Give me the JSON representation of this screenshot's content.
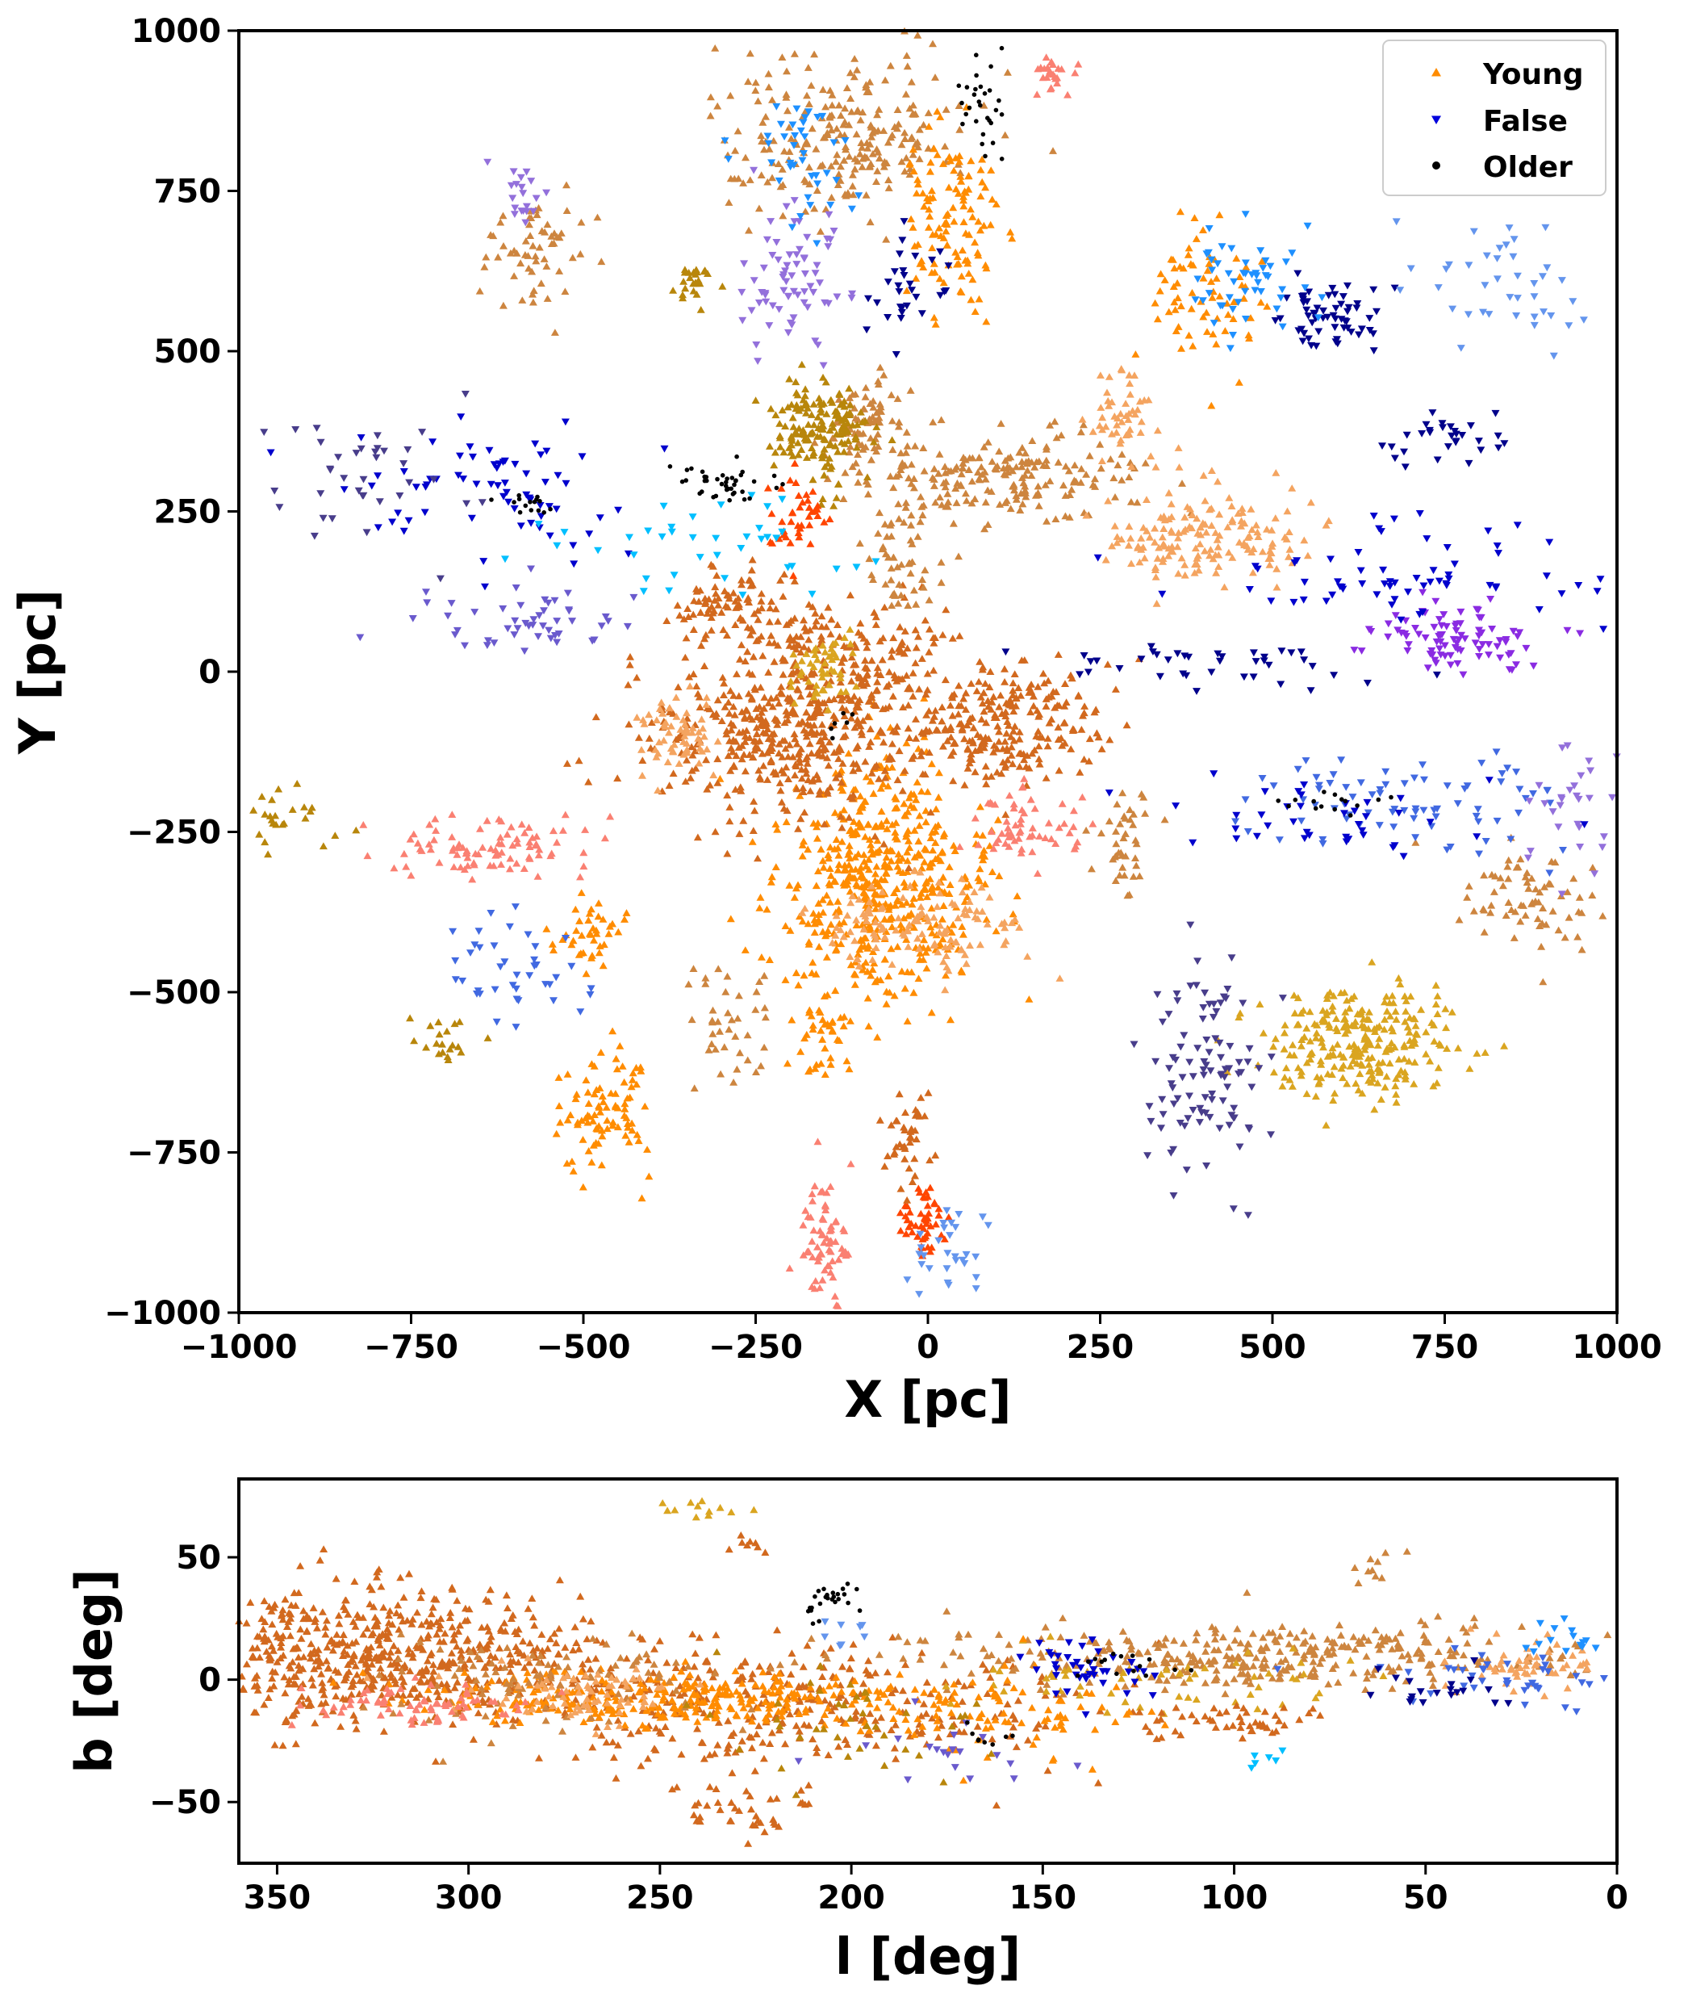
{
  "chart_data": [
    {
      "type": "scatter",
      "panel": "top",
      "xlabel": "X [pc]",
      "ylabel": "Y [pc]",
      "xlim": [
        -1000,
        1000
      ],
      "ylim": [
        -1000,
        1000
      ],
      "xticks": [
        -1000,
        -750,
        -500,
        -250,
        0,
        250,
        500,
        750,
        1000
      ],
      "yticks": [
        -1000,
        -750,
        -500,
        -250,
        0,
        250,
        500,
        750,
        1000
      ],
      "xtick_labels": [
        "−1000",
        "−750",
        "−500",
        "−250",
        "0",
        "250",
        "500",
        "750",
        "1000"
      ],
      "ytick_labels": [
        "−1000",
        "−750",
        "−500",
        "−250",
        "0",
        "250",
        "500",
        "750",
        "1000"
      ],
      "legend": {
        "placement": "top-right",
        "entries": [
          {
            "label": "Young",
            "marker": "triangle-up",
            "color": "#ff8c00"
          },
          {
            "label": "False",
            "marker": "triangle-down",
            "color": "#0000dd"
          },
          {
            "label": "Older",
            "marker": "circle",
            "color": "#000000"
          }
        ]
      },
      "series": [
        {
          "name": "Young",
          "marker": "triangle-up",
          "clusters": [
            {
              "color": "#ff8c00",
              "cx": -70,
              "cy": -330,
              "sx": 75,
              "sy": 95,
              "n": 520
            },
            {
              "color": "#d2691e",
              "cx": -220,
              "cy": -110,
              "sx": 95,
              "sy": 65,
              "n": 360
            },
            {
              "color": "#d2691e",
              "cx": 90,
              "cy": -80,
              "sx": 80,
              "sy": 55,
              "n": 260
            },
            {
              "color": "#d2691e",
              "cx": -120,
              "cy": 10,
              "sx": 80,
              "sy": 55,
              "n": 220
            },
            {
              "color": "#d2691e",
              "cx": -280,
              "cy": 100,
              "sx": 45,
              "sy": 30,
              "n": 90
            },
            {
              "color": "#cd853f",
              "cx": -130,
              "cy": 840,
              "sx": 90,
              "sy": 65,
              "n": 240
            },
            {
              "color": "#cd853f",
              "cx": 110,
              "cy": 300,
              "sx": 100,
              "sy": 35,
              "n": 200
            },
            {
              "color": "#cd853f",
              "cx": -90,
              "cy": 380,
              "sx": 30,
              "sy": 40,
              "n": 80
            },
            {
              "color": "#b8860b",
              "cx": -160,
              "cy": 380,
              "sx": 35,
              "sy": 40,
              "n": 160
            },
            {
              "color": "#f4a460",
              "cx": 400,
              "cy": 210,
              "sx": 75,
              "sy": 35,
              "n": 160
            },
            {
              "color": "#f4a460",
              "cx": -10,
              "cy": -400,
              "sx": 75,
              "sy": 35,
              "n": 120
            },
            {
              "color": "#f4a460",
              "cx": -360,
              "cy": -100,
              "sx": 30,
              "sy": 25,
              "n": 60
            },
            {
              "color": "#f4a460",
              "cx": 280,
              "cy": 400,
              "sx": 30,
              "sy": 40,
              "n": 50
            },
            {
              "color": "#daa520",
              "cx": 630,
              "cy": -580,
              "sx": 70,
              "sy": 45,
              "n": 260
            },
            {
              "color": "#daa520",
              "cx": -150,
              "cy": 0,
              "sx": 25,
              "sy": 25,
              "n": 50
            },
            {
              "color": "#ff8c00",
              "cx": 40,
              "cy": 700,
              "sx": 35,
              "sy": 70,
              "n": 120
            },
            {
              "color": "#ff8c00",
              "cx": 400,
              "cy": 580,
              "sx": 40,
              "sy": 60,
              "n": 70
            },
            {
              "color": "#ff8c00",
              "cx": -470,
              "cy": -680,
              "sx": 35,
              "sy": 50,
              "n": 90
            },
            {
              "color": "#ff8c00",
              "cx": -150,
              "cy": -580,
              "sx": 20,
              "sy": 40,
              "n": 40
            },
            {
              "color": "#ff8c00",
              "cx": -490,
              "cy": -410,
              "sx": 30,
              "sy": 25,
              "n": 40
            },
            {
              "color": "#fa8072",
              "cx": -640,
              "cy": -270,
              "sx": 70,
              "sy": 25,
              "n": 90
            },
            {
              "color": "#fa8072",
              "cx": 140,
              "cy": -240,
              "sx": 40,
              "sy": 30,
              "n": 60
            },
            {
              "color": "#fa8072",
              "cx": -150,
              "cy": -890,
              "sx": 20,
              "sy": 50,
              "n": 70
            },
            {
              "color": "#ff4500",
              "cx": -10,
              "cy": -850,
              "sx": 15,
              "sy": 30,
              "n": 50
            },
            {
              "color": "#ff4500",
              "cx": -190,
              "cy": 240,
              "sx": 20,
              "sy": 30,
              "n": 40
            },
            {
              "color": "#d2691e",
              "cx": -30,
              "cy": -730,
              "sx": 20,
              "sy": 35,
              "n": 40
            },
            {
              "color": "#cd853f",
              "cx": 870,
              "cy": -360,
              "sx": 50,
              "sy": 40,
              "n": 70
            },
            {
              "color": "#cd853f",
              "cx": -560,
              "cy": 650,
              "sx": 50,
              "sy": 45,
              "n": 60
            },
            {
              "color": "#cd853f",
              "cx": 290,
              "cy": -260,
              "sx": 25,
              "sy": 40,
              "n": 40
            },
            {
              "color": "#b8860b",
              "cx": -340,
              "cy": 600,
              "sx": 15,
              "sy": 20,
              "n": 25
            },
            {
              "color": "#b8860b",
              "cx": -920,
              "cy": -240,
              "sx": 40,
              "sy": 20,
              "n": 25
            },
            {
              "color": "#b8860b",
              "cx": -700,
              "cy": -580,
              "sx": 30,
              "sy": 20,
              "n": 20
            },
            {
              "color": "#cd853f",
              "cx": -40,
              "cy": 170,
              "sx": 30,
              "sy": 45,
              "n": 50
            },
            {
              "color": "#fa8072",
              "cx": 180,
              "cy": 940,
              "sx": 15,
              "sy": 20,
              "n": 25
            },
            {
              "color": "#cd853f",
              "cx": -300,
              "cy": -550,
              "sx": 40,
              "sy": 40,
              "n": 40
            }
          ]
        },
        {
          "name": "False",
          "marker": "triangle-down",
          "clusters": [
            {
              "color": "#8a2be2",
              "cx": 760,
              "cy": 50,
              "sx": 60,
              "sy": 25,
              "n": 90
            },
            {
              "color": "#9370db",
              "cx": -200,
              "cy": 600,
              "sx": 35,
              "sy": 70,
              "n": 70
            },
            {
              "color": "#483d8b",
              "cx": 400,
              "cy": -630,
              "sx": 45,
              "sy": 90,
              "n": 100
            },
            {
              "color": "#00008b",
              "cx": 590,
              "cy": 550,
              "sx": 40,
              "sy": 30,
              "n": 60
            },
            {
              "color": "#1e90ff",
              "cx": 460,
              "cy": 620,
              "sx": 40,
              "sy": 40,
              "n": 50
            },
            {
              "color": "#4169e1",
              "cx": 700,
              "cy": -200,
              "sx": 130,
              "sy": 40,
              "n": 80
            },
            {
              "color": "#0000cd",
              "cx": 720,
              "cy": 150,
              "sx": 150,
              "sy": 40,
              "n": 70
            },
            {
              "color": "#6495ed",
              "cx": 820,
              "cy": 600,
              "sx": 70,
              "sy": 50,
              "n": 40
            },
            {
              "color": "#00008b",
              "cx": 440,
              "cy": 10,
              "sx": 130,
              "sy": 15,
              "n": 40
            },
            {
              "color": "#0000cd",
              "cx": -630,
              "cy": 280,
              "sx": 100,
              "sy": 60,
              "n": 70
            },
            {
              "color": "#6a5acd",
              "cx": -570,
              "cy": 80,
              "sx": 90,
              "sy": 30,
              "n": 50
            },
            {
              "color": "#00bfff",
              "cx": -300,
              "cy": 200,
              "sx": 120,
              "sy": 50,
              "n": 40
            },
            {
              "color": "#4169e1",
              "cx": -600,
              "cy": -460,
              "sx": 50,
              "sy": 40,
              "n": 40
            },
            {
              "color": "#9370db",
              "cx": 930,
              "cy": -200,
              "sx": 30,
              "sy": 60,
              "n": 30
            },
            {
              "color": "#1e90ff",
              "cx": -180,
              "cy": 790,
              "sx": 40,
              "sy": 50,
              "n": 40
            },
            {
              "color": "#483d8b",
              "cx": -800,
              "cy": 320,
              "sx": 120,
              "sy": 60,
              "n": 40
            },
            {
              "color": "#00008b",
              "cx": -30,
              "cy": 600,
              "sx": 30,
              "sy": 50,
              "n": 30
            },
            {
              "color": "#6495ed",
              "cx": 30,
              "cy": -900,
              "sx": 40,
              "sy": 50,
              "n": 30
            },
            {
              "color": "#0000cd",
              "cx": 600,
              "cy": -230,
              "sx": 100,
              "sy": 30,
              "n": 40
            },
            {
              "color": "#9370db",
              "cx": -580,
              "cy": 740,
              "sx": 25,
              "sy": 25,
              "n": 20
            },
            {
              "color": "#00008b",
              "cx": 750,
              "cy": 360,
              "sx": 50,
              "sy": 20,
              "n": 30
            }
          ]
        },
        {
          "name": "Older",
          "marker": "circle",
          "clusters": [
            {
              "color": "#000000",
              "cx": 80,
              "cy": 890,
              "sx": 20,
              "sy": 40,
              "n": 30
            },
            {
              "color": "#000000",
              "cx": -290,
              "cy": 295,
              "sx": 35,
              "sy": 15,
              "n": 40
            },
            {
              "color": "#000000",
              "cx": -580,
              "cy": 260,
              "sx": 20,
              "sy": 10,
              "n": 15
            },
            {
              "color": "#000000",
              "cx": 580,
              "cy": -200,
              "sx": 35,
              "sy": 10,
              "n": 15
            },
            {
              "color": "#000000",
              "cx": -130,
              "cy": -80,
              "sx": 10,
              "sy": 15,
              "n": 6
            }
          ]
        }
      ]
    },
    {
      "type": "scatter",
      "panel": "bottom",
      "xlabel": "l [deg]",
      "ylabel": "b [deg]",
      "xlim": [
        360,
        0
      ],
      "ylim": [
        -75,
        82
      ],
      "xticks": [
        350,
        300,
        250,
        200,
        150,
        100,
        50,
        0
      ],
      "yticks": [
        -50,
        0,
        50
      ],
      "xtick_labels": [
        "350",
        "300",
        "250",
        "200",
        "150",
        "100",
        "50",
        "0"
      ],
      "ytick_labels": [
        "−50",
        "0",
        "50"
      ],
      "series": [
        {
          "name": "Young",
          "marker": "triangle-up",
          "clusters": [
            {
              "color": "#d2691e",
              "cx": 325,
              "cy": 10,
              "sx": 30,
              "sy": 13,
              "n": 650
            },
            {
              "color": "#d2691e",
              "cx": 220,
              "cy": -10,
              "sx": 40,
              "sy": 12,
              "n": 360
            },
            {
              "color": "#ff8c00",
              "cx": 245,
              "cy": -8,
              "sx": 30,
              "sy": 6,
              "n": 300
            },
            {
              "color": "#cd853f",
              "cx": 90,
              "cy": 10,
              "sx": 45,
              "sy": 7,
              "n": 360
            },
            {
              "color": "#cd853f",
              "cx": 280,
              "cy": 0,
              "sx": 25,
              "sy": 10,
              "n": 100
            },
            {
              "color": "#f4a460",
              "cx": 270,
              "cy": -5,
              "sx": 15,
              "sy": 6,
              "n": 70
            },
            {
              "color": "#f4a460",
              "cx": 25,
              "cy": 5,
              "sx": 10,
              "sy": 6,
              "n": 50
            },
            {
              "color": "#fa8072",
              "cx": 310,
              "cy": -10,
              "sx": 15,
              "sy": 5,
              "n": 70
            },
            {
              "color": "#d2691e",
              "cx": 230,
              "cy": -55,
              "sx": 10,
              "sy": 8,
              "n": 40
            },
            {
              "color": "#daa520",
              "cx": 120,
              "cy": 0,
              "sx": 30,
              "sy": 8,
              "n": 60
            },
            {
              "color": "#d2691e",
              "cx": 100,
              "cy": -17,
              "sx": 12,
              "sy": 3,
              "n": 50
            },
            {
              "color": "#cd853f",
              "cx": 60,
              "cy": 45,
              "sx": 6,
              "sy": 6,
              "n": 10
            },
            {
              "color": "#daa520",
              "cx": 240,
              "cy": 70,
              "sx": 6,
              "sy": 2,
              "n": 12
            },
            {
              "color": "#d2691e",
              "cx": 228,
              "cy": 56,
              "sx": 3,
              "sy": 2,
              "n": 8
            },
            {
              "color": "#ff8c00",
              "cx": 160,
              "cy": -15,
              "sx": 20,
              "sy": 10,
              "n": 80
            },
            {
              "color": "#b8860b",
              "cx": 200,
              "cy": -18,
              "sx": 20,
              "sy": 10,
              "n": 40
            }
          ]
        },
        {
          "name": "False",
          "marker": "triangle-down",
          "clusters": [
            {
              "color": "#0000cd",
              "cx": 140,
              "cy": 5,
              "sx": 10,
              "sy": 6,
              "n": 40
            },
            {
              "color": "#4169e1",
              "cx": 30,
              "cy": 0,
              "sx": 18,
              "sy": 6,
              "n": 40
            },
            {
              "color": "#1e90ff",
              "cx": 15,
              "cy": 15,
              "sx": 5,
              "sy": 4,
              "n": 15
            },
            {
              "color": "#6a5acd",
              "cx": 175,
              "cy": -30,
              "sx": 15,
              "sy": 8,
              "n": 20
            },
            {
              "color": "#00bfff",
              "cx": 92,
              "cy": -35,
              "sx": 3,
              "sy": 3,
              "n": 6
            },
            {
              "color": "#00008b",
              "cx": 50,
              "cy": -5,
              "sx": 10,
              "sy": 4,
              "n": 20
            },
            {
              "color": "#6495ed",
              "cx": 200,
              "cy": 20,
              "sx": 5,
              "sy": 5,
              "n": 8
            }
          ]
        },
        {
          "name": "Older",
          "marker": "circle",
          "clusters": [
            {
              "color": "#000000",
              "cx": 205,
              "cy": 32,
              "sx": 5,
              "sy": 4,
              "n": 25
            },
            {
              "color": "#000000",
              "cx": 130,
              "cy": 6,
              "sx": 7,
              "sy": 3,
              "n": 15
            },
            {
              "color": "#000000",
              "cx": 165,
              "cy": -22,
              "sx": 3,
              "sy": 2,
              "n": 8
            }
          ]
        }
      ]
    }
  ]
}
